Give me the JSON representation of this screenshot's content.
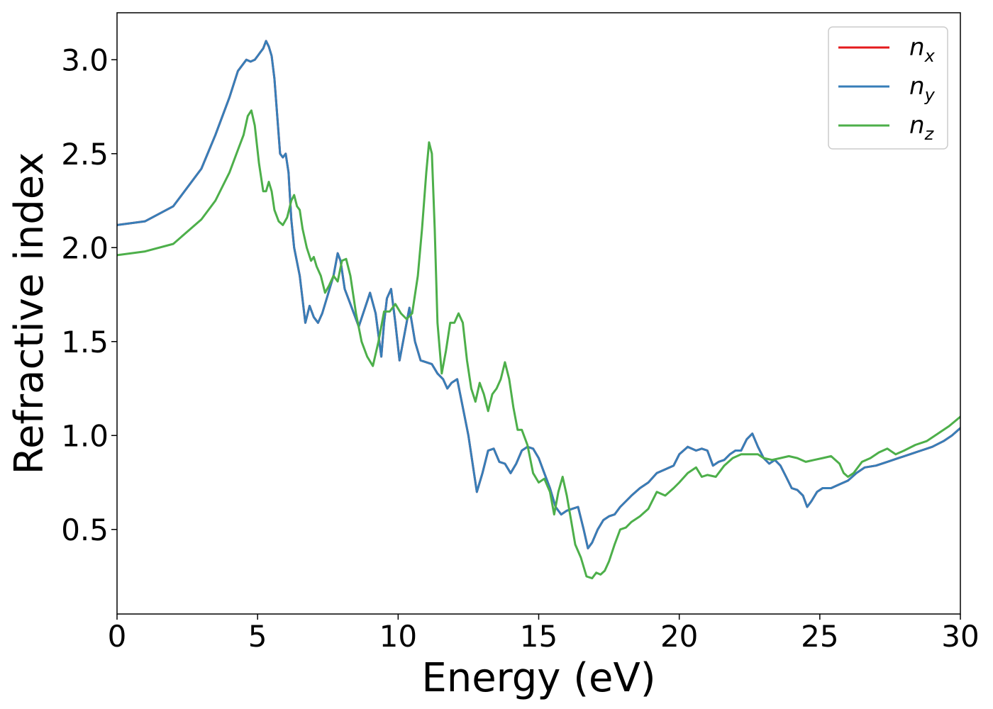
{
  "chart_data": {
    "type": "line",
    "xlabel": "Energy (eV)",
    "ylabel": "Refractive index",
    "xlim": [
      0,
      30
    ],
    "ylim": [
      0.05,
      3.25
    ],
    "xticks": [
      0,
      5,
      10,
      15,
      20,
      25,
      30
    ],
    "xtick_labels": [
      "0",
      "5",
      "10",
      "15",
      "20",
      "25",
      "30"
    ],
    "yticks": [
      0.5,
      1.0,
      1.5,
      2.0,
      2.5,
      3.0
    ],
    "ytick_labels": [
      "0.5",
      "1.0",
      "1.5",
      "2.0",
      "2.5",
      "3.0"
    ],
    "grid": false,
    "legend_position": "top-right",
    "legend": [
      {
        "base": "n",
        "sub": "x",
        "color": "#e41a1c"
      },
      {
        "base": "n",
        "sub": "y",
        "color": "#377eb8"
      },
      {
        "base": "n",
        "sub": "z",
        "color": "#4daf4a"
      }
    ],
    "series": [
      {
        "key": "nx",
        "color": "#e41a1c",
        "x": [
          0,
          1,
          2,
          3,
          3.5,
          4,
          4.3,
          4.6,
          4.75,
          4.9,
          5.0,
          5.1,
          5.2,
          5.3,
          5.4,
          5.5,
          5.6,
          5.7,
          5.8,
          5.9,
          6.0,
          6.1,
          6.2,
          6.3,
          6.5,
          6.7,
          6.85,
          7.0,
          7.15,
          7.3,
          7.5,
          7.7,
          7.85,
          7.95,
          8.1,
          8.3,
          8.6,
          8.8,
          9.0,
          9.2,
          9.4,
          9.5,
          9.6,
          9.75,
          9.9,
          10.05,
          10.2,
          10.4,
          10.6,
          10.8,
          11.0,
          11.2,
          11.4,
          11.6,
          11.75,
          11.9,
          12.1,
          12.3,
          12.5,
          12.7,
          12.8,
          13.0,
          13.2,
          13.4,
          13.6,
          13.8,
          14.0,
          14.2,
          14.4,
          14.6,
          14.8,
          15.0,
          15.2,
          15.4,
          15.6,
          15.8,
          16.0,
          16.2,
          16.4,
          16.6,
          16.75,
          16.9,
          17.1,
          17.3,
          17.5,
          17.7,
          17.9,
          18.1,
          18.3,
          18.6,
          18.9,
          19.2,
          19.5,
          19.8,
          20.0,
          20.3,
          20.6,
          20.8,
          21.0,
          21.2,
          21.4,
          21.6,
          21.8,
          22.0,
          22.2,
          22.4,
          22.6,
          22.8,
          23.0,
          23.2,
          23.4,
          23.6,
          23.8,
          24.0,
          24.2,
          24.4,
          24.55,
          24.7,
          24.9,
          25.1,
          25.4,
          25.7,
          26.0,
          26.3,
          26.6,
          27.0,
          27.4,
          27.8,
          28.2,
          28.6,
          29.0,
          29.4,
          29.7,
          30.0
        ],
        "y": [
          2.12,
          2.14,
          2.22,
          2.42,
          2.6,
          2.8,
          2.94,
          3.0,
          2.99,
          3.0,
          3.02,
          3.04,
          3.06,
          3.1,
          3.07,
          3.02,
          2.9,
          2.7,
          2.5,
          2.48,
          2.5,
          2.4,
          2.15,
          2.0,
          1.85,
          1.6,
          1.69,
          1.63,
          1.6,
          1.65,
          1.75,
          1.85,
          1.97,
          1.93,
          1.78,
          1.7,
          1.58,
          1.67,
          1.76,
          1.65,
          1.42,
          1.6,
          1.73,
          1.78,
          1.6,
          1.4,
          1.52,
          1.68,
          1.5,
          1.4,
          1.39,
          1.38,
          1.33,
          1.3,
          1.25,
          1.28,
          1.3,
          1.15,
          1.0,
          0.8,
          0.7,
          0.8,
          0.92,
          0.93,
          0.86,
          0.85,
          0.8,
          0.85,
          0.92,
          0.94,
          0.93,
          0.88,
          0.8,
          0.72,
          0.62,
          0.58,
          0.6,
          0.61,
          0.62,
          0.5,
          0.4,
          0.43,
          0.5,
          0.55,
          0.57,
          0.58,
          0.62,
          0.65,
          0.68,
          0.72,
          0.75,
          0.8,
          0.82,
          0.84,
          0.9,
          0.94,
          0.92,
          0.93,
          0.92,
          0.84,
          0.86,
          0.87,
          0.9,
          0.92,
          0.92,
          0.98,
          1.01,
          0.94,
          0.88,
          0.85,
          0.87,
          0.84,
          0.78,
          0.72,
          0.71,
          0.68,
          0.62,
          0.65,
          0.7,
          0.72,
          0.72,
          0.74,
          0.76,
          0.8,
          0.83,
          0.84,
          0.86,
          0.88,
          0.9,
          0.92,
          0.94,
          0.97,
          1.0,
          1.04
        ]
      },
      {
        "key": "ny",
        "color": "#377eb8",
        "x": [
          0,
          1,
          2,
          3,
          3.5,
          4,
          4.3,
          4.6,
          4.75,
          4.9,
          5.0,
          5.1,
          5.2,
          5.3,
          5.4,
          5.5,
          5.6,
          5.7,
          5.8,
          5.9,
          6.0,
          6.1,
          6.2,
          6.3,
          6.5,
          6.7,
          6.85,
          7.0,
          7.15,
          7.3,
          7.5,
          7.7,
          7.85,
          7.95,
          8.1,
          8.3,
          8.6,
          8.8,
          9.0,
          9.2,
          9.4,
          9.5,
          9.6,
          9.75,
          9.9,
          10.05,
          10.2,
          10.4,
          10.6,
          10.8,
          11.0,
          11.2,
          11.4,
          11.6,
          11.75,
          11.9,
          12.1,
          12.3,
          12.5,
          12.7,
          12.8,
          13.0,
          13.2,
          13.4,
          13.6,
          13.8,
          14.0,
          14.2,
          14.4,
          14.6,
          14.8,
          15.0,
          15.2,
          15.4,
          15.6,
          15.8,
          16.0,
          16.2,
          16.4,
          16.6,
          16.75,
          16.9,
          17.1,
          17.3,
          17.5,
          17.7,
          17.9,
          18.1,
          18.3,
          18.6,
          18.9,
          19.2,
          19.5,
          19.8,
          20.0,
          20.3,
          20.6,
          20.8,
          21.0,
          21.2,
          21.4,
          21.6,
          21.8,
          22.0,
          22.2,
          22.4,
          22.6,
          22.8,
          23.0,
          23.2,
          23.4,
          23.6,
          23.8,
          24.0,
          24.2,
          24.4,
          24.55,
          24.7,
          24.9,
          25.1,
          25.4,
          25.7,
          26.0,
          26.3,
          26.6,
          27.0,
          27.4,
          27.8,
          28.2,
          28.6,
          29.0,
          29.4,
          29.7,
          30.0
        ],
        "y": [
          2.12,
          2.14,
          2.22,
          2.42,
          2.6,
          2.8,
          2.94,
          3.0,
          2.99,
          3.0,
          3.02,
          3.04,
          3.06,
          3.1,
          3.07,
          3.02,
          2.9,
          2.7,
          2.5,
          2.48,
          2.5,
          2.4,
          2.15,
          2.0,
          1.85,
          1.6,
          1.69,
          1.63,
          1.6,
          1.65,
          1.75,
          1.85,
          1.97,
          1.93,
          1.78,
          1.7,
          1.58,
          1.67,
          1.76,
          1.65,
          1.42,
          1.6,
          1.73,
          1.78,
          1.6,
          1.4,
          1.52,
          1.68,
          1.5,
          1.4,
          1.39,
          1.38,
          1.33,
          1.3,
          1.25,
          1.28,
          1.3,
          1.15,
          1.0,
          0.8,
          0.7,
          0.8,
          0.92,
          0.93,
          0.86,
          0.85,
          0.8,
          0.85,
          0.92,
          0.94,
          0.93,
          0.88,
          0.8,
          0.72,
          0.62,
          0.58,
          0.6,
          0.61,
          0.62,
          0.5,
          0.4,
          0.43,
          0.5,
          0.55,
          0.57,
          0.58,
          0.62,
          0.65,
          0.68,
          0.72,
          0.75,
          0.8,
          0.82,
          0.84,
          0.9,
          0.94,
          0.92,
          0.93,
          0.92,
          0.84,
          0.86,
          0.87,
          0.9,
          0.92,
          0.92,
          0.98,
          1.01,
          0.94,
          0.88,
          0.85,
          0.87,
          0.84,
          0.78,
          0.72,
          0.71,
          0.68,
          0.62,
          0.65,
          0.7,
          0.72,
          0.72,
          0.74,
          0.76,
          0.8,
          0.83,
          0.84,
          0.86,
          0.88,
          0.9,
          0.92,
          0.94,
          0.97,
          1.0,
          1.04
        ]
      },
      {
        "key": "nz",
        "color": "#4daf4a",
        "x": [
          0,
          1,
          2,
          3,
          3.5,
          4,
          4.3,
          4.5,
          4.65,
          4.78,
          4.9,
          5.05,
          5.2,
          5.3,
          5.4,
          5.5,
          5.6,
          5.75,
          5.9,
          6.05,
          6.2,
          6.3,
          6.4,
          6.5,
          6.6,
          6.75,
          6.9,
          7.0,
          7.1,
          7.25,
          7.4,
          7.55,
          7.7,
          7.85,
          8.0,
          8.15,
          8.3,
          8.5,
          8.7,
          8.9,
          9.1,
          9.3,
          9.5,
          9.7,
          9.9,
          10.1,
          10.3,
          10.5,
          10.7,
          10.85,
          11.0,
          11.1,
          11.2,
          11.3,
          11.4,
          11.55,
          11.7,
          11.85,
          12.0,
          12.15,
          12.3,
          12.45,
          12.6,
          12.75,
          12.9,
          13.05,
          13.2,
          13.35,
          13.5,
          13.65,
          13.8,
          13.95,
          14.1,
          14.25,
          14.4,
          14.6,
          14.8,
          15.0,
          15.2,
          15.4,
          15.55,
          15.7,
          15.85,
          16.0,
          16.15,
          16.3,
          16.5,
          16.7,
          16.9,
          17.05,
          17.2,
          17.35,
          17.5,
          17.7,
          17.9,
          18.1,
          18.3,
          18.6,
          18.9,
          19.2,
          19.5,
          19.8,
          20.0,
          20.3,
          20.6,
          20.8,
          21.0,
          21.3,
          21.6,
          21.9,
          22.2,
          22.5,
          22.8,
          23.0,
          23.3,
          23.6,
          23.9,
          24.2,
          24.5,
          24.8,
          25.1,
          25.4,
          25.7,
          25.85,
          26.0,
          26.2,
          26.5,
          26.8,
          27.1,
          27.4,
          27.7,
          28.0,
          28.4,
          28.8,
          29.2,
          29.6,
          30.0
        ],
        "y": [
          1.96,
          1.98,
          2.02,
          2.15,
          2.25,
          2.4,
          2.52,
          2.6,
          2.7,
          2.73,
          2.65,
          2.45,
          2.3,
          2.3,
          2.35,
          2.3,
          2.2,
          2.14,
          2.12,
          2.16,
          2.25,
          2.28,
          2.22,
          2.2,
          2.1,
          2.0,
          1.93,
          1.95,
          1.9,
          1.85,
          1.76,
          1.8,
          1.85,
          1.82,
          1.93,
          1.94,
          1.85,
          1.65,
          1.5,
          1.42,
          1.37,
          1.5,
          1.66,
          1.66,
          1.7,
          1.65,
          1.62,
          1.65,
          1.85,
          2.1,
          2.4,
          2.56,
          2.5,
          2.1,
          1.6,
          1.33,
          1.45,
          1.6,
          1.6,
          1.65,
          1.6,
          1.4,
          1.25,
          1.18,
          1.28,
          1.22,
          1.13,
          1.22,
          1.25,
          1.3,
          1.39,
          1.3,
          1.15,
          1.03,
          1.03,
          0.95,
          0.8,
          0.75,
          0.77,
          0.7,
          0.58,
          0.7,
          0.78,
          0.68,
          0.55,
          0.42,
          0.35,
          0.25,
          0.24,
          0.27,
          0.26,
          0.28,
          0.33,
          0.42,
          0.5,
          0.51,
          0.54,
          0.57,
          0.61,
          0.7,
          0.68,
          0.72,
          0.75,
          0.8,
          0.83,
          0.78,
          0.79,
          0.78,
          0.84,
          0.88,
          0.9,
          0.9,
          0.9,
          0.88,
          0.87,
          0.88,
          0.89,
          0.88,
          0.86,
          0.87,
          0.88,
          0.89,
          0.85,
          0.8,
          0.78,
          0.8,
          0.86,
          0.88,
          0.91,
          0.93,
          0.9,
          0.92,
          0.95,
          0.97,
          1.01,
          1.05,
          1.1
        ]
      }
    ]
  }
}
